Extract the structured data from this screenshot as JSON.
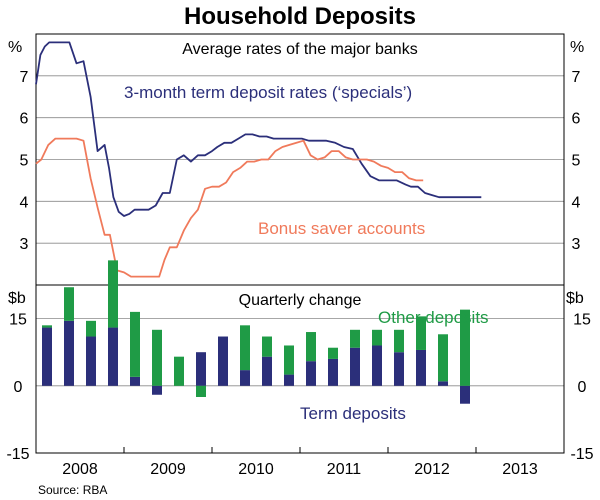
{
  "title": "Household Deposits",
  "source": "Source: RBA",
  "colors": {
    "term_rate": "#2b2f7a",
    "bonus_rate": "#f07a5b",
    "term_deposits": "#2b2f7a",
    "other_deposits": "#1f9b46",
    "grid": "#8a8a8a"
  },
  "chart_data": [
    {
      "type": "line",
      "panel_title": "Average rates of the major banks",
      "ylabel_left": "%",
      "ylabel_right": "%",
      "ylim": [
        2,
        8
      ],
      "yticks": [
        3,
        4,
        5,
        6,
        7
      ],
      "xlim": [
        2007.5,
        2013.5
      ],
      "grid": true,
      "series": [
        {
          "name": "3-month term deposit rates (‘specials’)",
          "x": [
            2007.5,
            2007.55,
            2007.6,
            2007.65,
            2007.7,
            2007.75,
            2007.8,
            2007.88,
            2007.96,
            2008.04,
            2008.12,
            2008.2,
            2008.28,
            2008.33,
            2008.38,
            2008.44,
            2008.5,
            2008.56,
            2008.62,
            2008.7,
            2008.78,
            2008.86,
            2008.94,
            2009.02,
            2009.1,
            2009.18,
            2009.26,
            2009.34,
            2009.42,
            2009.5,
            2009.56,
            2009.64,
            2009.72,
            2009.8,
            2009.88,
            2009.96,
            2010.04,
            2010.12,
            2010.2,
            2010.28,
            2010.36,
            2010.44,
            2010.52,
            2010.6,
            2010.7,
            2010.8,
            2010.9,
            2011.0,
            2011.1,
            2011.2,
            2011.3,
            2011.4,
            2011.5,
            2011.6,
            2011.7,
            2011.76,
            2011.84,
            2011.92,
            2012.0,
            2012.08,
            2012.16,
            2012.24,
            2012.32,
            2012.4,
            2012.48,
            2012.56
          ],
          "values": [
            6.8,
            7.5,
            7.7,
            7.8,
            7.8,
            7.8,
            7.8,
            7.8,
            7.3,
            7.35,
            6.5,
            5.2,
            5.35,
            4.8,
            4.1,
            3.75,
            3.65,
            3.7,
            3.8,
            3.8,
            3.8,
            3.9,
            4.2,
            4.2,
            5.0,
            5.1,
            4.95,
            5.1,
            5.1,
            5.2,
            5.3,
            5.4,
            5.4,
            5.5,
            5.6,
            5.6,
            5.55,
            5.55,
            5.5,
            5.5,
            5.5,
            5.5,
            5.5,
            5.45,
            5.45,
            5.45,
            5.4,
            5.3,
            5.25,
            4.9,
            4.6,
            4.5,
            4.5,
            4.5,
            4.4,
            4.35,
            4.35,
            4.2,
            4.15,
            4.1,
            4.1,
            4.1,
            4.1,
            4.1,
            4.1,
            4.1
          ]
        },
        {
          "name": "Bonus saver accounts",
          "x": [
            2007.5,
            2007.56,
            2007.64,
            2007.72,
            2007.8,
            2007.88,
            2007.96,
            2008.04,
            2008.12,
            2008.2,
            2008.28,
            2008.34,
            2008.42,
            2008.5,
            2008.58,
            2008.66,
            2008.74,
            2008.82,
            2008.9,
            2008.96,
            2009.02,
            2009.1,
            2009.18,
            2009.26,
            2009.34,
            2009.42,
            2009.5,
            2009.58,
            2009.66,
            2009.74,
            2009.82,
            2009.9,
            2009.98,
            2010.06,
            2010.14,
            2010.22,
            2010.3,
            2010.38,
            2010.46,
            2010.54,
            2010.62,
            2010.7,
            2010.78,
            2010.86,
            2010.94,
            2011.02,
            2011.1,
            2011.18,
            2011.26,
            2011.34,
            2011.42,
            2011.5,
            2011.58,
            2011.66,
            2011.74,
            2011.82,
            2011.9
          ],
          "values": [
            4.9,
            5.0,
            5.35,
            5.5,
            5.5,
            5.5,
            5.5,
            5.45,
            4.55,
            3.85,
            3.2,
            3.2,
            2.35,
            2.3,
            2.2,
            2.2,
            2.2,
            2.2,
            2.2,
            2.6,
            2.9,
            2.9,
            3.3,
            3.6,
            3.8,
            4.3,
            4.35,
            4.35,
            4.45,
            4.7,
            4.8,
            4.95,
            4.95,
            5.0,
            5.0,
            5.2,
            5.3,
            5.35,
            5.4,
            5.45,
            5.1,
            5.0,
            5.05,
            5.2,
            5.2,
            5.05,
            5.0,
            5.0,
            5.0,
            4.95,
            4.85,
            4.8,
            4.7,
            4.7,
            4.55,
            4.5,
            4.5
          ]
        }
      ]
    },
    {
      "type": "bar",
      "panel_title": "Quarterly change",
      "ylabel_left": "$b",
      "ylabel_right": "$b",
      "ylim": [
        -15,
        22.5
      ],
      "yticks": [
        -15,
        0,
        15
      ],
      "xlabels": [
        "2008",
        "2009",
        "2010",
        "2011",
        "2012",
        "2013"
      ],
      "grid": true,
      "stacked": true,
      "categories": [
        "Q1 2008",
        "Q2 2008",
        "Q3 2008",
        "Q4 2008",
        "Q1 2009",
        "Q2 2009",
        "Q3 2009",
        "Q4 2009",
        "Q1 2010",
        "Q2 2010",
        "Q3 2010",
        "Q4 2010",
        "Q1 2011",
        "Q2 2011",
        "Q3 2011",
        "Q4 2011",
        "Q1 2012",
        "Q2 2012",
        "Q3 2012",
        "Q4 2012"
      ],
      "series": [
        {
          "name": "Term deposits",
          "values": [
            13,
            14.5,
            11,
            13,
            2,
            -2,
            0,
            7.5,
            11,
            3.5,
            6.5,
            2.5,
            5.5,
            6,
            8.5,
            9,
            7.5,
            8,
            1,
            -4
          ]
        },
        {
          "name": "Other deposits",
          "values": [
            0.5,
            7.5,
            3.5,
            15,
            14.5,
            12.5,
            6.5,
            -2.5,
            0,
            10,
            4.5,
            6.5,
            6.5,
            2.5,
            4,
            3.5,
            5,
            7.5,
            10.5,
            17
          ]
        }
      ]
    }
  ]
}
